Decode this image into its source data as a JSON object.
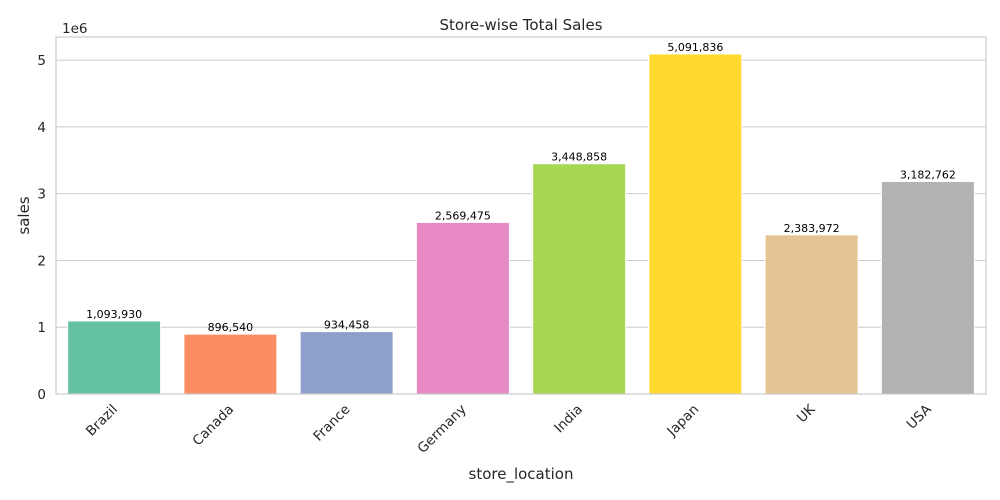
{
  "chart_data": {
    "type": "bar",
    "title": "Store-wise Total Sales",
    "xlabel": "store_location",
    "ylabel": "sales",
    "y_offset_label": "1e6",
    "categories": [
      "Brazil",
      "Canada",
      "France",
      "Germany",
      "India",
      "Japan",
      "UK",
      "USA"
    ],
    "values": [
      1093930,
      896540,
      934458,
      2569475,
      3448858,
      5091836,
      2383972,
      3182762
    ],
    "value_labels": [
      "1,093,930",
      "896,540",
      "934,458",
      "2,569,475",
      "3,448,858",
      "5,091,836",
      "2,383,972",
      "3,182,762"
    ],
    "colors": [
      "#66c2a5",
      "#fc8d62",
      "#8da0cb",
      "#e78ac3",
      "#a6d854",
      "#ffd92f",
      "#e5c494",
      "#b3b3b3"
    ],
    "ylim": [
      0,
      5346428
    ],
    "yticks": [
      0,
      1000000,
      2000000,
      3000000,
      4000000,
      5000000
    ],
    "ytick_labels": [
      "0",
      "1",
      "2",
      "3",
      "4",
      "5"
    ],
    "grid": "horizontal",
    "x_tick_rotation": 45
  }
}
